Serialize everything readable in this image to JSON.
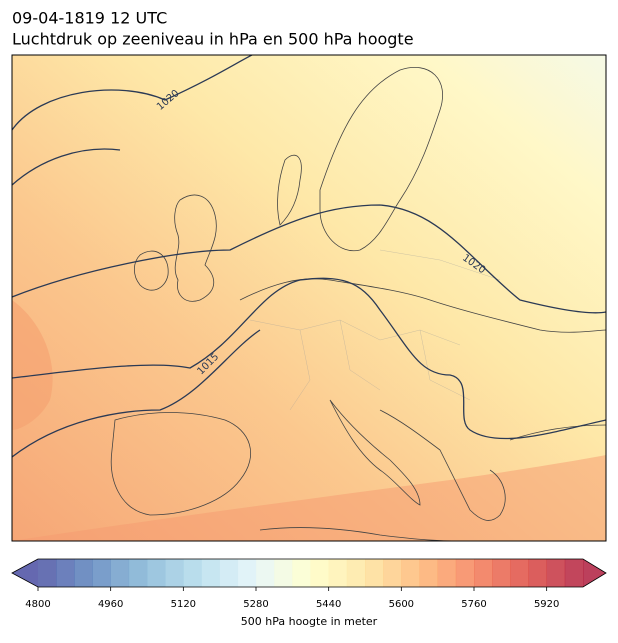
{
  "title": "09-04-1819 12 UTC",
  "subtitle": "Luchtdruk op zeeniveau in hPa en 500 hPa hoogte",
  "isobars": [
    1020,
    1020,
    1015
  ],
  "colorbar": {
    "label": "500 hPa hoogte in meter",
    "lim": [
      4800,
      6000
    ],
    "ticks": [
      4800,
      4960,
      5120,
      5280,
      5440,
      5600,
      5760,
      5920
    ],
    "levels": [
      4800,
      4840,
      4880,
      4920,
      4960,
      5000,
      5040,
      5080,
      5120,
      5160,
      5200,
      5240,
      5280,
      5320,
      5360,
      5400,
      5440,
      5480,
      5520,
      5560,
      5600,
      5640,
      5680,
      5720,
      5760,
      5800,
      5840,
      5880,
      5920,
      5960,
      6000
    ],
    "colormap": [
      "#313695",
      "#4575b4",
      "#74add1",
      "#abd9e9",
      "#e0f3f8",
      "#ffffbf",
      "#fee090",
      "#fdae61",
      "#f46d43",
      "#d73027",
      "#a50026"
    ]
  }
}
